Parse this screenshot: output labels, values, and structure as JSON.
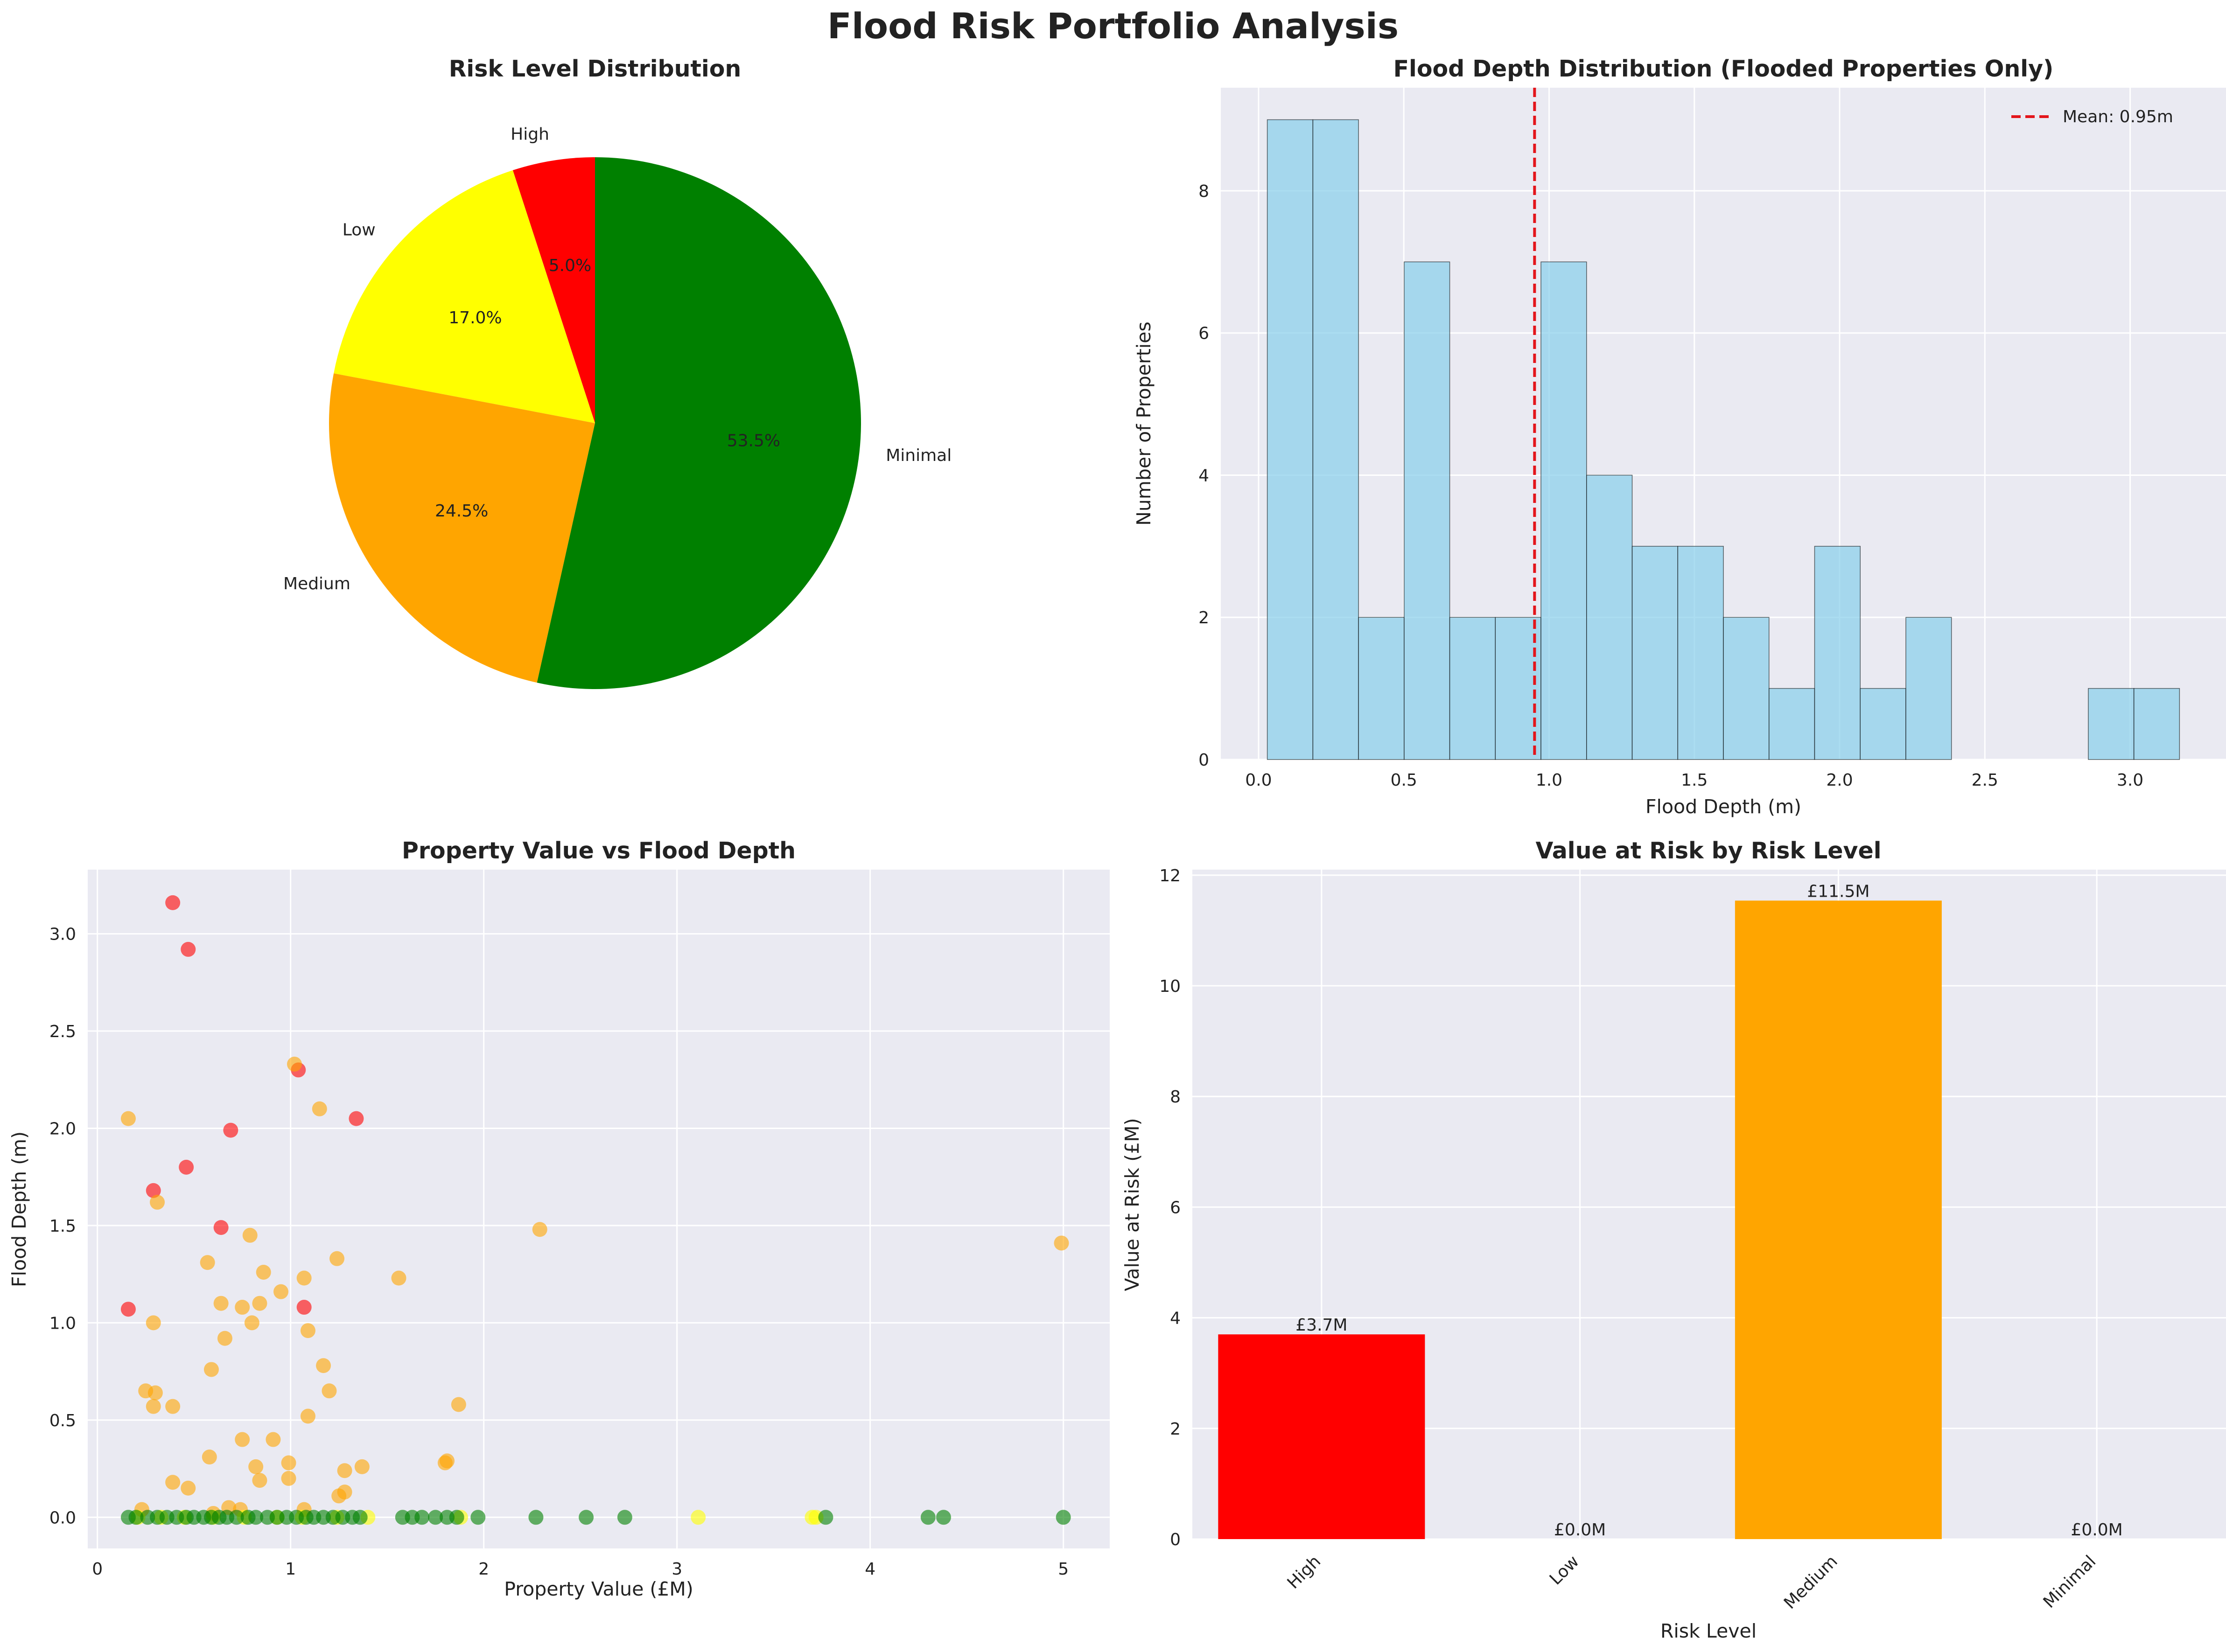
{
  "figure": {
    "title": "Flood Risk Portfolio Analysis"
  },
  "chart_data": [
    {
      "type": "pie",
      "title": "Risk Level Distribution",
      "labels": [
        "High",
        "Low",
        "Medium",
        "Minimal"
      ],
      "values": [
        5.0,
        17.0,
        24.5,
        53.5
      ],
      "pct_labels": [
        "5.0%",
        "17.0%",
        "24.5%",
        "53.5%"
      ],
      "colors": [
        "#ff0000",
        "#ffff00",
        "#ffa500",
        "#008000"
      ],
      "start_angle": 90,
      "direction": "counterclockwise"
    },
    {
      "type": "bar",
      "title": "Flood Depth Distribution (Flooded Properties Only)",
      "xlabel": "Flood Depth (m)",
      "ylabel": "Number of Properties",
      "bin_edges": [
        0.03,
        0.187,
        0.344,
        0.501,
        0.658,
        0.815,
        0.972,
        1.129,
        1.286,
        1.443,
        1.6,
        1.757,
        1.914,
        2.071,
        2.228,
        2.385,
        2.542,
        2.699,
        2.856,
        3.013,
        3.17
      ],
      "counts": [
        9,
        9,
        2,
        7,
        2,
        2,
        7,
        4,
        3,
        3,
        2,
        1,
        3,
        1,
        2,
        0,
        0,
        0,
        1,
        1
      ],
      "color": "#87ceeb",
      "xlim": [
        -0.13,
        3.33
      ],
      "ylim": [
        0,
        9.45
      ],
      "xticks": [
        "0.0",
        "0.5",
        "1.0",
        "1.5",
        "2.0",
        "2.5",
        "3.0"
      ],
      "yticks": [
        "0",
        "2",
        "4",
        "6",
        "8"
      ],
      "mean_line": {
        "value": 0.95,
        "label": "Mean: 0.95m",
        "color": "#e3151b"
      },
      "legend_position": "top-right"
    },
    {
      "type": "scatter",
      "title": "Property Value vs Flood Depth",
      "xlabel": "Property Value (£M)",
      "ylabel": "Flood Depth (m)",
      "xlim": [
        -0.05,
        5.24
      ],
      "ylim": [
        -0.16,
        3.33
      ],
      "xticks": [
        "0",
        "1",
        "2",
        "3",
        "4",
        "5"
      ],
      "yticks": [
        "0.0",
        "0.5",
        "1.0",
        "1.5",
        "2.0",
        "2.5",
        "3.0"
      ],
      "series": [
        {
          "name": "High",
          "color": "#ff0000",
          "points": [
            [
              0.39,
              3.16
            ],
            [
              0.47,
              2.92
            ],
            [
              1.04,
              2.3
            ],
            [
              0.69,
              1.99
            ],
            [
              1.34,
              2.05
            ],
            [
              0.46,
              1.8
            ],
            [
              0.29,
              1.68
            ],
            [
              0.64,
              1.49
            ],
            [
              0.16,
              1.07
            ],
            [
              1.07,
              1.08
            ]
          ]
        },
        {
          "name": "Medium",
          "color": "#ffa500",
          "points": [
            [
              0.16,
              2.05
            ],
            [
              1.02,
              2.33
            ],
            [
              1.15,
              2.1
            ],
            [
              0.31,
              1.62
            ],
            [
              2.29,
              1.48
            ],
            [
              4.99,
              1.41
            ],
            [
              0.79,
              1.45
            ],
            [
              0.57,
              1.31
            ],
            [
              1.24,
              1.33
            ],
            [
              0.86,
              1.26
            ],
            [
              1.07,
              1.23
            ],
            [
              1.56,
              1.23
            ],
            [
              0.95,
              1.16
            ],
            [
              0.64,
              1.1
            ],
            [
              0.84,
              1.1
            ],
            [
              0.75,
              1.08
            ],
            [
              0.8,
              1.0
            ],
            [
              0.29,
              1.0
            ],
            [
              1.09,
              0.96
            ],
            [
              0.66,
              0.92
            ],
            [
              1.17,
              0.78
            ],
            [
              0.59,
              0.76
            ],
            [
              1.2,
              0.65
            ],
            [
              0.25,
              0.65
            ],
            [
              0.3,
              0.64
            ],
            [
              0.29,
              0.57
            ],
            [
              0.39,
              0.57
            ],
            [
              1.87,
              0.58
            ],
            [
              1.09,
              0.52
            ],
            [
              0.91,
              0.4
            ],
            [
              0.75,
              0.4
            ],
            [
              0.58,
              0.31
            ],
            [
              0.99,
              0.28
            ],
            [
              1.37,
              0.26
            ],
            [
              0.82,
              0.26
            ],
            [
              1.81,
              0.29
            ],
            [
              1.8,
              0.28
            ],
            [
              1.28,
              0.24
            ],
            [
              0.99,
              0.2
            ],
            [
              0.84,
              0.19
            ],
            [
              0.39,
              0.18
            ],
            [
              1.28,
              0.13
            ],
            [
              0.47,
              0.15
            ],
            [
              1.25,
              0.11
            ],
            [
              0.68,
              0.05
            ],
            [
              1.07,
              0.04
            ],
            [
              0.74,
              0.04
            ],
            [
              0.23,
              0.04
            ],
            [
              0.6,
              0.02
            ]
          ]
        },
        {
          "name": "Low",
          "color": "#ffff00",
          "points": [
            [
              0.21,
              0.0
            ],
            [
              0.33,
              0.0
            ],
            [
              0.45,
              0.0
            ],
            [
              0.6,
              0.0
            ],
            [
              0.76,
              0.0
            ],
            [
              0.93,
              0.0
            ],
            [
              1.06,
              0.0
            ],
            [
              1.24,
              0.0
            ],
            [
              1.4,
              0.0
            ],
            [
              1.88,
              0.0
            ],
            [
              3.11,
              0.0
            ],
            [
              3.7,
              0.0
            ],
            [
              3.72,
              0.0
            ]
          ]
        },
        {
          "name": "Minimal",
          "color": "#008000",
          "points": [
            [
              0.16,
              0.0
            ],
            [
              0.2,
              0.0
            ],
            [
              0.26,
              0.0
            ],
            [
              0.31,
              0.0
            ],
            [
              0.36,
              0.0
            ],
            [
              0.41,
              0.0
            ],
            [
              0.46,
              0.0
            ],
            [
              0.5,
              0.0
            ],
            [
              0.55,
              0.0
            ],
            [
              0.59,
              0.0
            ],
            [
              0.63,
              0.0
            ],
            [
              0.67,
              0.0
            ],
            [
              0.72,
              0.0
            ],
            [
              0.78,
              0.0
            ],
            [
              0.82,
              0.0
            ],
            [
              0.88,
              0.0
            ],
            [
              0.93,
              0.0
            ],
            [
              0.98,
              0.0
            ],
            [
              1.03,
              0.0
            ],
            [
              1.08,
              0.0
            ],
            [
              1.12,
              0.0
            ],
            [
              1.17,
              0.0
            ],
            [
              1.22,
              0.0
            ],
            [
              1.27,
              0.0
            ],
            [
              1.32,
              0.0
            ],
            [
              1.36,
              0.0
            ],
            [
              1.58,
              0.0
            ],
            [
              1.63,
              0.0
            ],
            [
              1.68,
              0.0
            ],
            [
              1.75,
              0.0
            ],
            [
              1.81,
              0.0
            ],
            [
              1.86,
              0.0
            ],
            [
              1.97,
              0.0
            ],
            [
              2.27,
              0.0
            ],
            [
              2.53,
              0.0
            ],
            [
              2.73,
              0.0
            ],
            [
              3.77,
              0.0
            ],
            [
              4.3,
              0.0
            ],
            [
              4.38,
              0.0
            ],
            [
              5.0,
              0.0
            ]
          ]
        }
      ]
    },
    {
      "type": "bar",
      "title": "Value at Risk by Risk Level",
      "xlabel": "Risk Level",
      "ylabel": "Value at Risk (£M)",
      "categories": [
        "High",
        "Low",
        "Medium",
        "Minimal"
      ],
      "values": [
        3.7,
        0.0,
        11.54,
        0.0
      ],
      "value_labels": [
        "£3.7M",
        "£0.0M",
        "£11.5M",
        "£0.0M"
      ],
      "colors": [
        "#ff0000",
        "#ffff00",
        "#ffa500",
        "#008000"
      ],
      "ylim": [
        0,
        12.1
      ],
      "yticks": [
        "0",
        "2",
        "4",
        "6",
        "8",
        "10",
        "12"
      ]
    }
  ]
}
